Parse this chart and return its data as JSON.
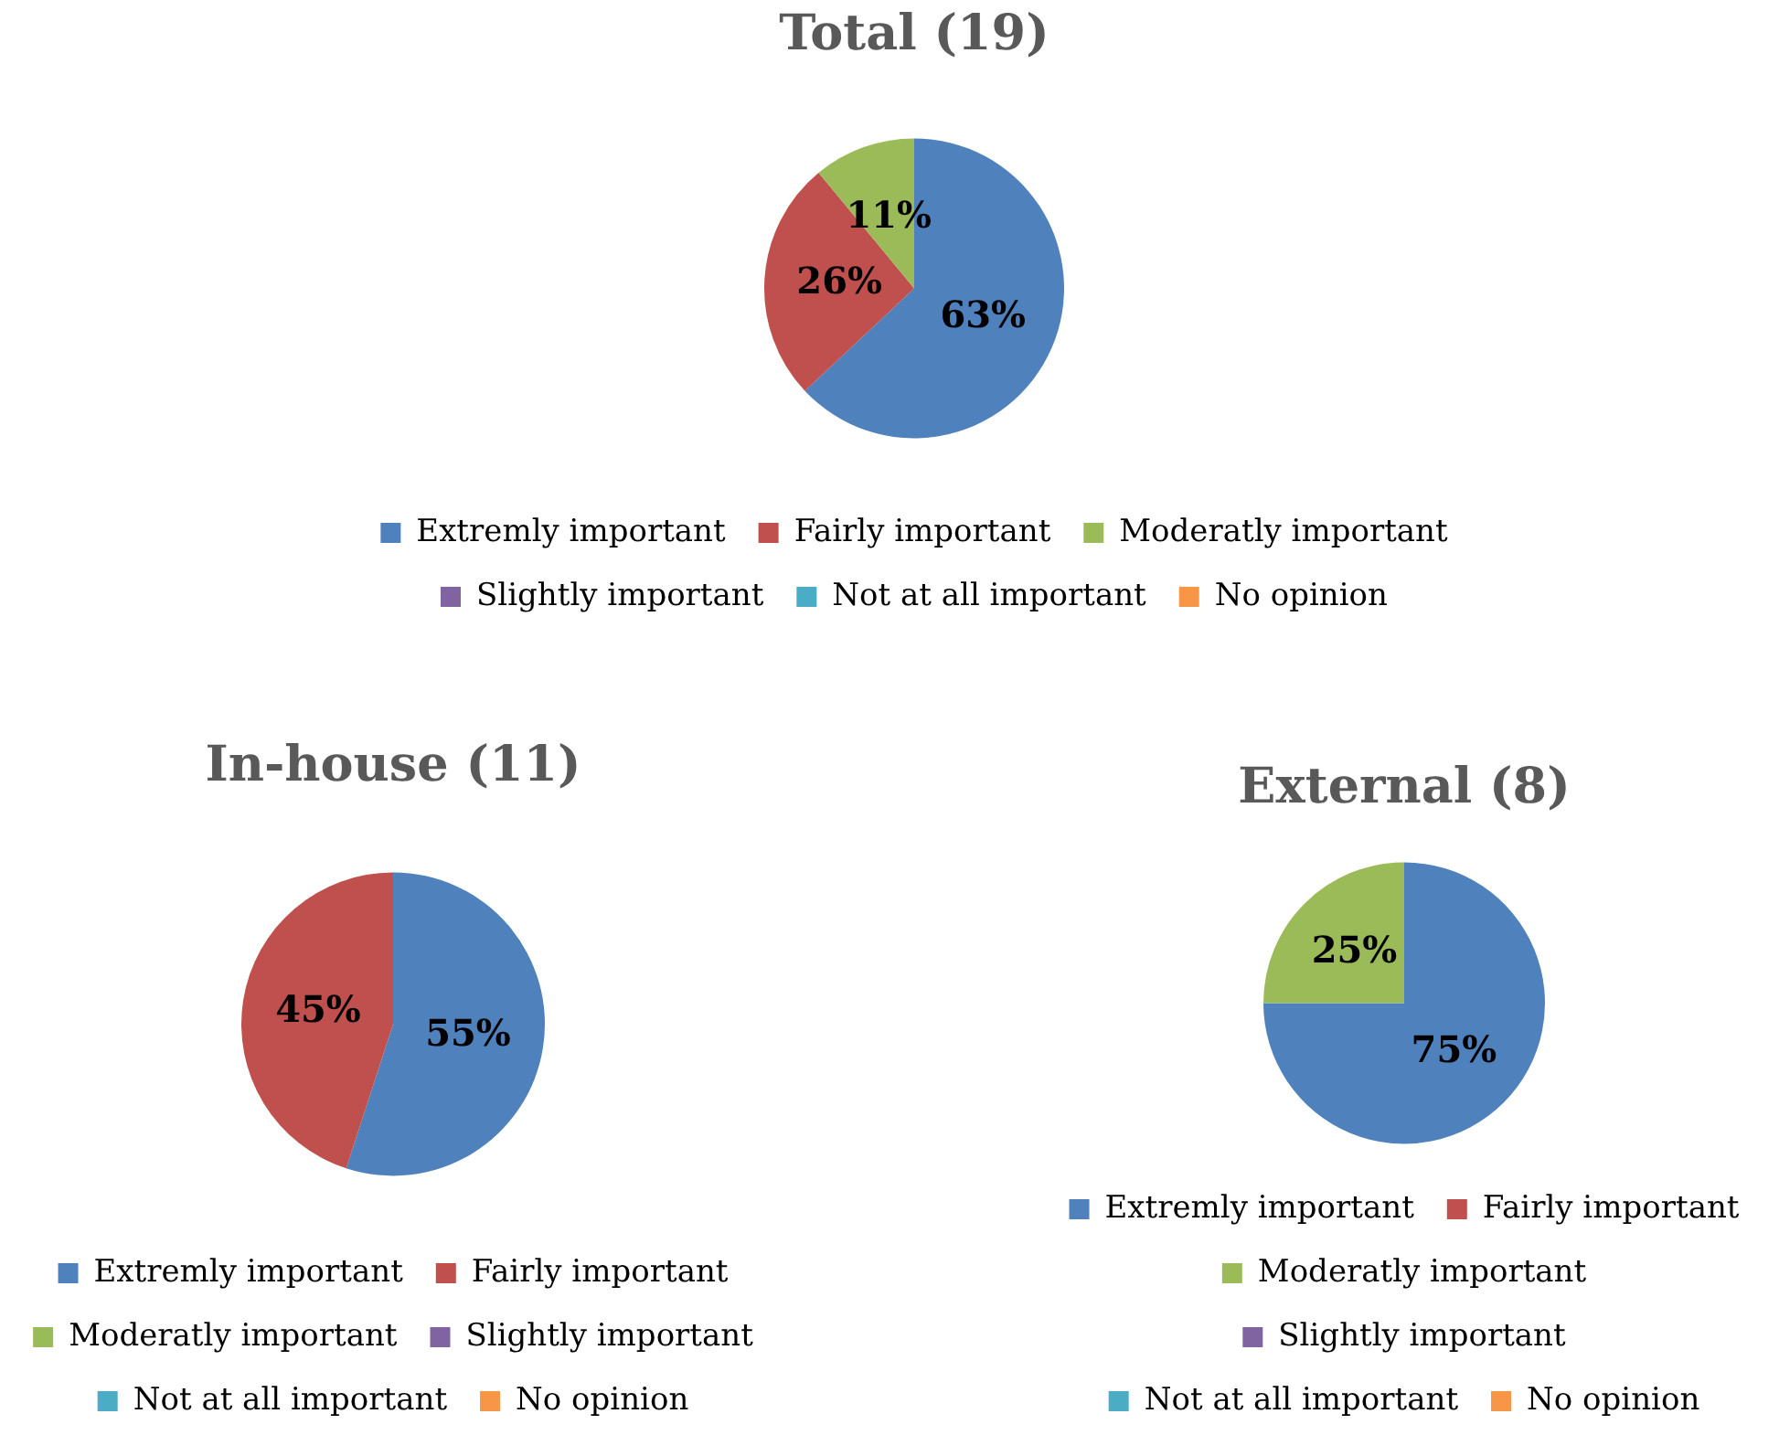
{
  "chart_data": [
    {
      "type": "pie",
      "title": "Total (19)",
      "categories": [
        "Extremly important",
        "Fairly important",
        "Moderatly important",
        "Slightly important",
        "Not at all important",
        "No opinion"
      ],
      "values": [
        63,
        26,
        11,
        0,
        0,
        0
      ],
      "colors": [
        "#4f81bd",
        "#c0504d",
        "#9bbb59",
        "#8064a2",
        "#4bacc6",
        "#f79646"
      ],
      "value_labels": [
        "63%",
        "26%",
        "11%",
        null,
        null,
        null
      ],
      "legend": "bottom"
    },
    {
      "type": "pie",
      "title": "In-house (11)",
      "categories": [
        "Extremly important",
        "Fairly important",
        "Moderatly important",
        "Slightly important",
        "Not at all important",
        "No opinion"
      ],
      "values": [
        55,
        45,
        0,
        0,
        0,
        0
      ],
      "colors": [
        "#4f81bd",
        "#c0504d",
        "#9bbb59",
        "#8064a2",
        "#4bacc6",
        "#f79646"
      ],
      "value_labels": [
        "55%",
        "45%",
        null,
        null,
        null,
        null
      ],
      "legend": "bottom"
    },
    {
      "type": "pie",
      "title": "External (8)",
      "categories": [
        "Extremly important",
        "Fairly important",
        "Moderatly important",
        "Slightly important",
        "Not at all important",
        "No opinion"
      ],
      "values": [
        75,
        0,
        25,
        0,
        0,
        0
      ],
      "colors": [
        "#4f81bd",
        "#c0504d",
        "#9bbb59",
        "#8064a2",
        "#4bacc6",
        "#f79646"
      ],
      "value_labels": [
        "75%",
        null,
        "25%",
        null,
        null,
        null
      ],
      "legend": "bottom"
    }
  ]
}
